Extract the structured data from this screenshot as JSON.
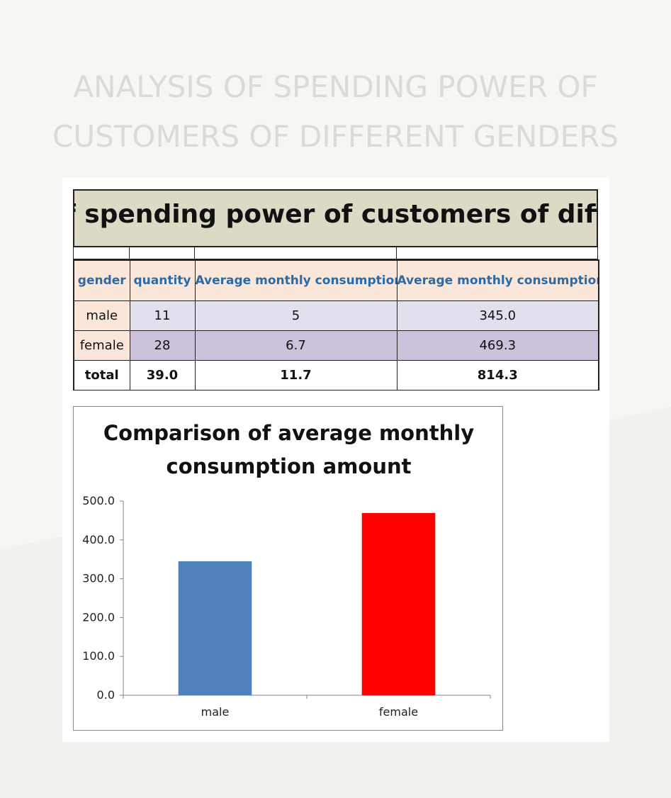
{
  "page": {
    "title_line1": "ANALYSIS OF SPENDING POWER OF",
    "title_line2": "CUSTOMERS OF DIFFERENT GENDERS"
  },
  "sheet": {
    "title": "Analysis of spending power of customers of different genders",
    "title_visible": "f spending power of customers of differe",
    "headers": [
      "gender",
      "quantity",
      "Average monthly consumption",
      "Average monthly consumption"
    ],
    "rows": [
      {
        "gender": "male",
        "quantity": "11",
        "avg1": "5",
        "avg2": "345.0"
      },
      {
        "gender": "female",
        "quantity": "28",
        "avg1": "6.7",
        "avg2": "469.3"
      }
    ],
    "total": {
      "label": "total",
      "quantity": "39.0",
      "avg1": "11.7",
      "avg2": "814.3"
    }
  },
  "colors": {
    "header_text": "#2c6aa4",
    "male_bar": "#4f81bd",
    "female_bar": "#ff0000"
  },
  "chart_data": {
    "type": "bar",
    "title": "Comparison of average monthly consumption amount",
    "title_line1": "Comparison of average monthly",
    "title_line2": "consumption amount",
    "categories": [
      "male",
      "female"
    ],
    "values": [
      345.0,
      469.3
    ],
    "bar_colors": [
      "#4f81bd",
      "#ff0000"
    ],
    "ylim": [
      0,
      500
    ],
    "yticks": [
      0,
      100,
      200,
      300,
      400,
      500
    ],
    "ytick_labels": [
      "0.0",
      "100.0",
      "200.0",
      "300.0",
      "400.0",
      "500.0"
    ],
    "xlabel": "",
    "ylabel": "",
    "grid": false,
    "legend": "none"
  }
}
